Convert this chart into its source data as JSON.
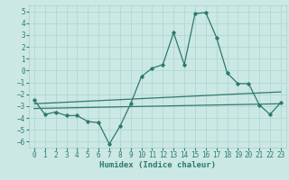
{
  "xlabel": "Humidex (Indice chaleur)",
  "xlim": [
    -0.5,
    23.5
  ],
  "ylim": [
    -6.5,
    5.5
  ],
  "xticks": [
    0,
    1,
    2,
    3,
    4,
    5,
    6,
    7,
    8,
    9,
    10,
    11,
    12,
    13,
    14,
    15,
    16,
    17,
    18,
    19,
    20,
    21,
    22,
    23
  ],
  "yticks": [
    -6,
    -5,
    -4,
    -3,
    -2,
    -1,
    0,
    1,
    2,
    3,
    4,
    5
  ],
  "background_color": "#cbe8e4",
  "grid_color": "#b0d8d4",
  "line_color": "#2d7a6e",
  "line1_x": [
    0,
    1,
    2,
    3,
    4,
    5,
    6,
    7,
    8,
    9,
    10,
    11,
    12,
    13,
    14,
    15,
    16,
    17,
    18,
    19,
    20,
    21,
    22,
    23
  ],
  "line1_y": [
    -2.5,
    -3.7,
    -3.5,
    -3.8,
    -3.8,
    -4.3,
    -4.4,
    -6.2,
    -4.7,
    -2.8,
    -0.5,
    0.2,
    0.5,
    3.2,
    0.5,
    4.8,
    4.9,
    2.8,
    -0.2,
    -1.1,
    -1.1,
    -2.9,
    -3.7,
    -2.7
  ],
  "line2_x": [
    0,
    23
  ],
  "line2_y": [
    -2.8,
    -1.8
  ],
  "line3_x": [
    0,
    23
  ],
  "line3_y": [
    -3.2,
    -2.8
  ],
  "tick_fontsize": 5.5,
  "xlabel_fontsize": 6.5
}
